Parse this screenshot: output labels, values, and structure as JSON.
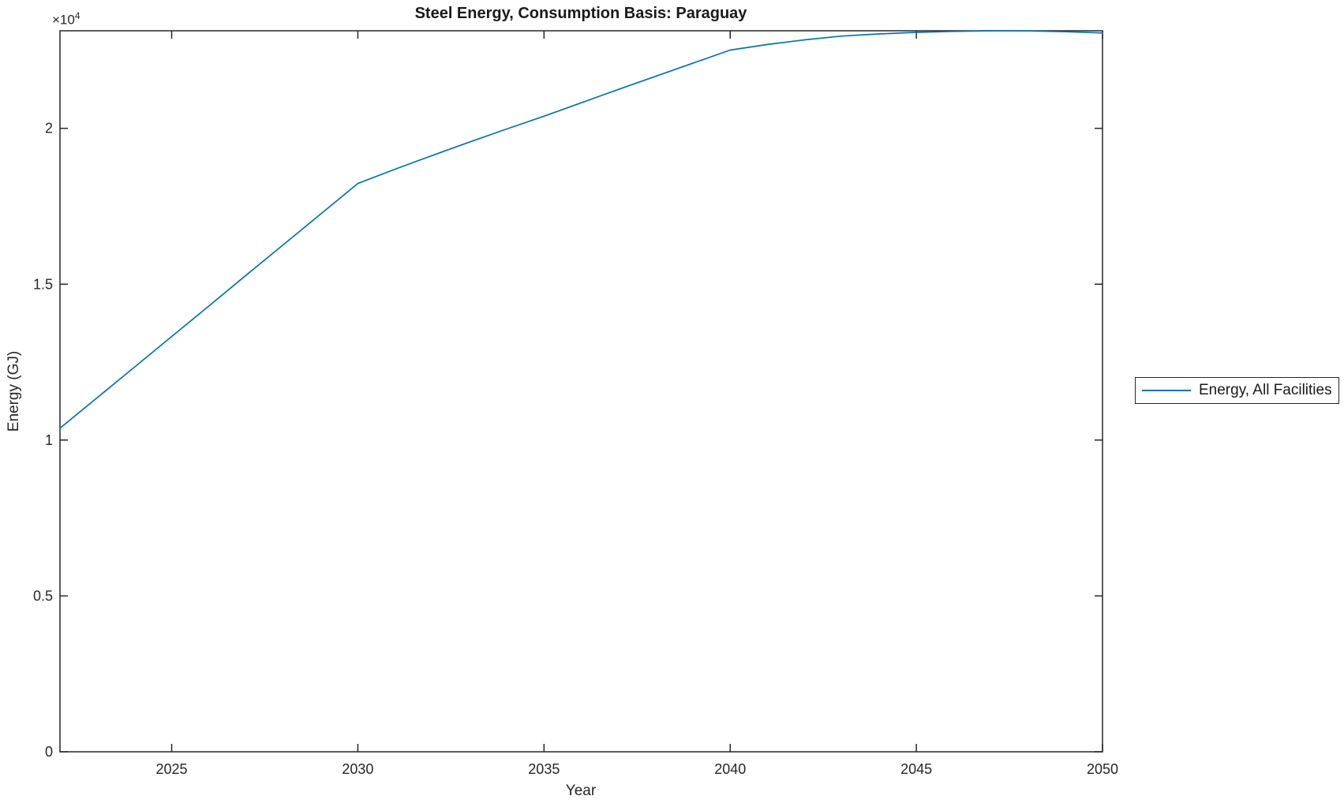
{
  "figure": {
    "title": "Steel Energy, Consumption Basis: Paraguay",
    "xlabel": "Year",
    "ylabel": "Energy (GJ)",
    "y_multiplier_base": "×10",
    "y_multiplier_exp": "4",
    "legend": {
      "entries": [
        "Energy, All Facilities"
      ],
      "position": "right-outside"
    },
    "colors": {
      "line": "#0072BD",
      "axes": "#262626",
      "background": "#ffffff"
    }
  },
  "chart_data": {
    "type": "line",
    "title": "Steel Energy, Consumption Basis: Paraguay",
    "xlabel": "Year",
    "ylabel": "Energy (GJ)",
    "y_axis_multiplier": "x10^4",
    "xlim": [
      2022,
      2050
    ],
    "ylim": [
      0,
      23130
    ],
    "x_ticks": [
      2025,
      2030,
      2035,
      2040,
      2045,
      2050
    ],
    "x_tick_labels": [
      "2025",
      "2030",
      "2035",
      "2040",
      "2045",
      "2050"
    ],
    "y_ticks": [
      0,
      5000,
      10000,
      15000,
      20000
    ],
    "y_tick_labels": [
      "0",
      "0.5",
      "1",
      "1.5",
      "2"
    ],
    "grid": false,
    "legend_position": "right-outside",
    "series": [
      {
        "name": "Energy, All Facilities",
        "color": "#0072BD",
        "x": [
          2022,
          2023,
          2024,
          2025,
          2026,
          2027,
          2028,
          2029,
          2030,
          2031,
          2032,
          2033,
          2034,
          2035,
          2036,
          2037,
          2038,
          2039,
          2040,
          2041,
          2042,
          2043,
          2044,
          2045,
          2046,
          2047,
          2048,
          2049,
          2050
        ],
        "y": [
          10380,
          11360,
          12340,
          13320,
          14300,
          15290,
          16270,
          17250,
          18230,
          18690,
          19130,
          19560,
          19980,
          20390,
          20820,
          21250,
          21670,
          22090,
          22510,
          22690,
          22840,
          22960,
          23030,
          23080,
          23110,
          23130,
          23125,
          23100,
          23060
        ]
      }
    ]
  }
}
